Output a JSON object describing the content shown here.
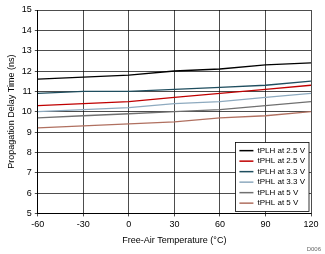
{
  "chart_data": {
    "type": "line",
    "x_label": "Free-Air Temperature (°C)",
    "y_label": "Propagation Delay Time (ns)",
    "annotation": "D006",
    "x": [
      -60,
      -30,
      0,
      30,
      60,
      90,
      120
    ],
    "xlim": [
      -60,
      120
    ],
    "xticks": [
      -60,
      -30,
      0,
      30,
      60,
      90,
      120
    ],
    "ylim": [
      5,
      15
    ],
    "yticks": [
      5,
      6,
      7,
      8,
      9,
      10,
      11,
      12,
      13,
      14,
      15
    ],
    "grid": true,
    "legend": "lower right",
    "series": [
      {
        "name": "tPLH at 2.5 V",
        "color": "#000000",
        "values": [
          11.6,
          11.7,
          11.8,
          12.0,
          12.1,
          12.3,
          12.4
        ]
      },
      {
        "name": "tPHL at 2.5 V",
        "color": "#c00000",
        "values": [
          10.3,
          10.4,
          10.5,
          10.7,
          10.9,
          11.1,
          11.3
        ]
      },
      {
        "name": "tPLH at 3.3 V",
        "color": "#1f4e5f",
        "values": [
          10.9,
          11.0,
          11.0,
          11.1,
          11.2,
          11.3,
          11.5
        ]
      },
      {
        "name": "tPHL at 3.3 V",
        "color": "#8eaabf",
        "values": [
          10.0,
          10.1,
          10.2,
          10.4,
          10.5,
          10.7,
          10.9
        ]
      },
      {
        "name": "tPLH at 5 V",
        "color": "#707070",
        "values": [
          9.7,
          9.8,
          9.9,
          10.0,
          10.1,
          10.3,
          10.5
        ]
      },
      {
        "name": "tPHL at 5 V",
        "color": "#b07060",
        "values": [
          9.2,
          9.3,
          9.4,
          9.5,
          9.7,
          9.8,
          10.0
        ]
      }
    ]
  }
}
